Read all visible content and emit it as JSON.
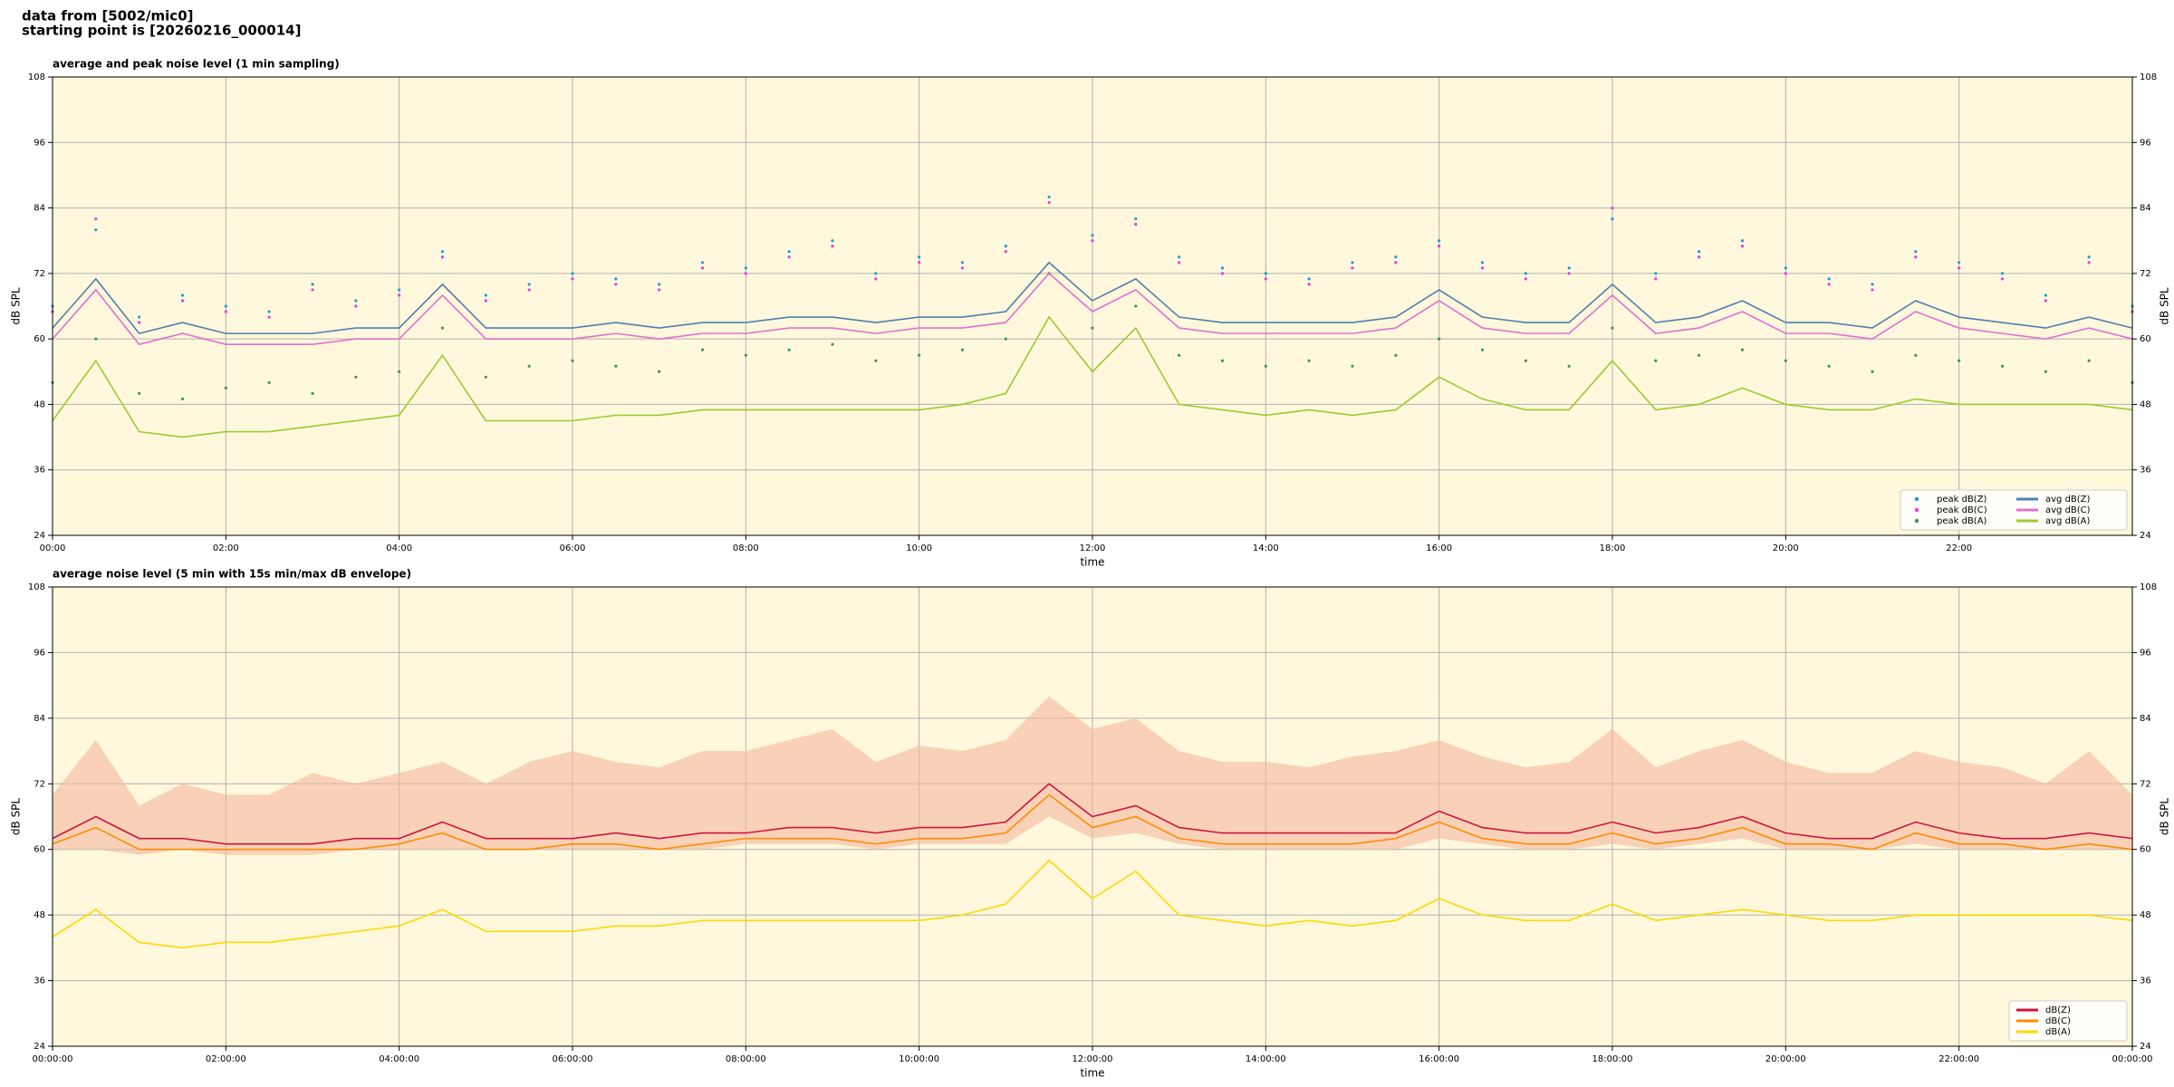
{
  "header": {
    "line1": "data from [5002/mic0]",
    "line2": "starting point is [20260216_000014]"
  },
  "chart_data": [
    {
      "type": "line",
      "title": "average and peak noise level (1 min sampling)",
      "x_label": "time",
      "y_label": "dB SPL",
      "grid": true,
      "background": "#fff8dc",
      "legend": "lower right",
      "legend_columns": 2,
      "xlim": [
        0,
        24
      ],
      "xticks": [
        {
          "value": 0,
          "label": "00:00"
        },
        {
          "value": 2,
          "label": "02:00"
        },
        {
          "value": 4,
          "label": "04:00"
        },
        {
          "value": 6,
          "label": "06:00"
        },
        {
          "value": 8,
          "label": "08:00"
        },
        {
          "value": 10,
          "label": "10:00"
        },
        {
          "value": 12,
          "label": "12:00"
        },
        {
          "value": 14,
          "label": "14:00"
        },
        {
          "value": 16,
          "label": "16:00"
        },
        {
          "value": 18,
          "label": "18:00"
        },
        {
          "value": 20,
          "label": "20:00"
        },
        {
          "value": 22,
          "label": "22:00"
        }
      ],
      "ylim": [
        24,
        108
      ],
      "yticks": [
        24,
        36,
        48,
        60,
        72,
        84,
        96,
        108
      ],
      "x": [
        0,
        0.5,
        1,
        1.5,
        2,
        2.5,
        3,
        3.5,
        4,
        4.5,
        5,
        5.5,
        6,
        6.5,
        7,
        7.5,
        8,
        8.5,
        9,
        9.5,
        10,
        10.5,
        11,
        11.5,
        12,
        12.5,
        13,
        13.5,
        14,
        14.5,
        15,
        15.5,
        16,
        16.5,
        17,
        17.5,
        18,
        18.5,
        19,
        19.5,
        20,
        20.5,
        21,
        21.5,
        22,
        22.5,
        23,
        23.5,
        24
      ],
      "series": [
        {
          "name": "peak dB(Z)",
          "style": "points",
          "color": "#1f9ed8",
          "values": [
            66,
            80,
            64,
            68,
            66,
            65,
            70,
            67,
            69,
            76,
            68,
            70,
            72,
            71,
            70,
            74,
            73,
            76,
            78,
            72,
            75,
            74,
            77,
            86,
            79,
            82,
            75,
            73,
            72,
            71,
            74,
            75,
            78,
            74,
            72,
            73,
            82,
            72,
            76,
            78,
            73,
            71,
            70,
            76,
            74,
            72,
            68,
            75,
            66
          ]
        },
        {
          "name": "peak dB(C)",
          "style": "points",
          "color": "#e040e0",
          "values": [
            65,
            82,
            63,
            67,
            65,
            64,
            69,
            66,
            68,
            75,
            67,
            69,
            71,
            70,
            69,
            73,
            72,
            75,
            77,
            71,
            74,
            73,
            76,
            85,
            78,
            81,
            74,
            72,
            71,
            70,
            73,
            74,
            77,
            73,
            71,
            72,
            84,
            71,
            75,
            77,
            72,
            70,
            69,
            75,
            73,
            71,
            67,
            74,
            65
          ]
        },
        {
          "name": "peak dB(A)",
          "style": "points",
          "color": "#3a9a5a",
          "values": [
            52,
            60,
            50,
            49,
            51,
            52,
            50,
            53,
            54,
            62,
            53,
            55,
            56,
            55,
            54,
            58,
            57,
            58,
            59,
            56,
            57,
            58,
            60,
            72,
            62,
            66,
            57,
            56,
            55,
            56,
            55,
            57,
            60,
            58,
            56,
            55,
            62,
            56,
            57,
            58,
            56,
            55,
            54,
            57,
            56,
            55,
            54,
            56,
            52
          ]
        },
        {
          "name": "avg dB(Z)",
          "style": "line",
          "color": "#4f7fb0",
          "values": [
            62,
            71,
            61,
            63,
            61,
            61,
            61,
            62,
            62,
            70,
            62,
            62,
            62,
            63,
            62,
            63,
            63,
            64,
            64,
            63,
            64,
            64,
            65,
            74,
            67,
            71,
            64,
            63,
            63,
            63,
            63,
            64,
            69,
            64,
            63,
            63,
            70,
            63,
            64,
            67,
            63,
            63,
            62,
            67,
            64,
            63,
            62,
            64,
            62
          ]
        },
        {
          "name": "avg dB(C)",
          "style": "line",
          "color": "#e070d0",
          "values": [
            60,
            69,
            59,
            61,
            59,
            59,
            59,
            60,
            60,
            68,
            60,
            60,
            60,
            61,
            60,
            61,
            61,
            62,
            62,
            61,
            62,
            62,
            63,
            72,
            65,
            69,
            62,
            61,
            61,
            61,
            61,
            62,
            67,
            62,
            61,
            61,
            68,
            61,
            62,
            65,
            61,
            61,
            60,
            65,
            62,
            61,
            60,
            62,
            60
          ]
        },
        {
          "name": "avg dB(A)",
          "style": "line",
          "color": "#9acd32",
          "values": [
            45,
            56,
            43,
            42,
            43,
            43,
            44,
            45,
            46,
            57,
            45,
            45,
            45,
            46,
            46,
            47,
            47,
            47,
            47,
            47,
            47,
            48,
            50,
            64,
            54,
            62,
            48,
            47,
            46,
            47,
            46,
            47,
            53,
            49,
            47,
            47,
            56,
            47,
            48,
            51,
            48,
            47,
            47,
            49,
            48,
            48,
            48,
            48,
            47
          ]
        }
      ]
    },
    {
      "type": "line",
      "title": "average noise level (5 min with 15s min/max dB envelope)",
      "x_label": "time",
      "y_label": "dB SPL",
      "grid": true,
      "background": "#fff8dc",
      "legend": "lower right",
      "legend_columns": 1,
      "xlim": [
        0,
        24
      ],
      "xticks": [
        {
          "value": 0,
          "label": "00:00:00"
        },
        {
          "value": 2,
          "label": "02:00:00"
        },
        {
          "value": 4,
          "label": "04:00:00"
        },
        {
          "value": 6,
          "label": "06:00:00"
        },
        {
          "value": 8,
          "label": "08:00:00"
        },
        {
          "value": 10,
          "label": "10:00:00"
        },
        {
          "value": 12,
          "label": "12:00:00"
        },
        {
          "value": 14,
          "label": "14:00:00"
        },
        {
          "value": 16,
          "label": "16:00:00"
        },
        {
          "value": 18,
          "label": "18:00:00"
        },
        {
          "value": 20,
          "label": "20:00:00"
        },
        {
          "value": 22,
          "label": "22:00:00"
        },
        {
          "value": 24,
          "label": "00:00:00"
        }
      ],
      "ylim": [
        24,
        108
      ],
      "yticks": [
        24,
        36,
        48,
        60,
        72,
        84,
        96,
        108
      ],
      "x": [
        0,
        0.5,
        1,
        1.5,
        2,
        2.5,
        3,
        3.5,
        4,
        4.5,
        5,
        5.5,
        6,
        6.5,
        7,
        7.5,
        8,
        8.5,
        9,
        9.5,
        10,
        10.5,
        11,
        11.5,
        12,
        12.5,
        13,
        13.5,
        14,
        14.5,
        15,
        15.5,
        16,
        16.5,
        17,
        17.5,
        18,
        18.5,
        19,
        19.5,
        20,
        20.5,
        21,
        21.5,
        22,
        22.5,
        23,
        23.5,
        24
      ],
      "envelope": {
        "color": "#f4b8a0",
        "low": [
          60,
          60,
          59,
          60,
          59,
          59,
          59,
          60,
          60,
          60,
          60,
          60,
          60,
          60,
          60,
          60,
          61,
          61,
          61,
          60,
          61,
          61,
          61,
          66,
          62,
          63,
          61,
          60,
          60,
          60,
          60,
          60,
          62,
          61,
          60,
          60,
          61,
          60,
          61,
          62,
          60,
          60,
          60,
          61,
          60,
          60,
          60,
          60,
          60
        ],
        "high": [
          70,
          80,
          68,
          72,
          70,
          70,
          74,
          72,
          74,
          76,
          72,
          76,
          78,
          76,
          75,
          78,
          78,
          80,
          82,
          76,
          79,
          78,
          80,
          88,
          82,
          84,
          78,
          76,
          76,
          75,
          77,
          78,
          80,
          77,
          75,
          76,
          82,
          75,
          78,
          80,
          76,
          74,
          74,
          78,
          76,
          75,
          72,
          78,
          70
        ]
      },
      "series": [
        {
          "name": "dB(Z)",
          "style": "line",
          "color": "#d0143c",
          "values": [
            62,
            66,
            62,
            62,
            61,
            61,
            61,
            62,
            62,
            65,
            62,
            62,
            62,
            63,
            62,
            63,
            63,
            64,
            64,
            63,
            64,
            64,
            65,
            72,
            66,
            68,
            64,
            63,
            63,
            63,
            63,
            63,
            67,
            64,
            63,
            63,
            65,
            63,
            64,
            66,
            63,
            62,
            62,
            65,
            63,
            62,
            62,
            63,
            62
          ]
        },
        {
          "name": "dB(C)",
          "style": "line",
          "color": "#ff8c00",
          "values": [
            61,
            64,
            60,
            60,
            60,
            60,
            60,
            60,
            61,
            63,
            60,
            60,
            61,
            61,
            60,
            61,
            62,
            62,
            62,
            61,
            62,
            62,
            63,
            70,
            64,
            66,
            62,
            61,
            61,
            61,
            61,
            62,
            65,
            62,
            61,
            61,
            63,
            61,
            62,
            64,
            61,
            61,
            60,
            63,
            61,
            61,
            60,
            61,
            60
          ]
        },
        {
          "name": "dB(A)",
          "style": "line",
          "color": "#ffd700",
          "values": [
            44,
            49,
            43,
            42,
            43,
            43,
            44,
            45,
            46,
            49,
            45,
            45,
            45,
            46,
            46,
            47,
            47,
            47,
            47,
            47,
            47,
            48,
            50,
            58,
            51,
            56,
            48,
            47,
            46,
            47,
            46,
            47,
            51,
            48,
            47,
            47,
            50,
            47,
            48,
            49,
            48,
            47,
            47,
            48,
            48,
            48,
            48,
            48,
            47
          ]
        }
      ]
    }
  ]
}
